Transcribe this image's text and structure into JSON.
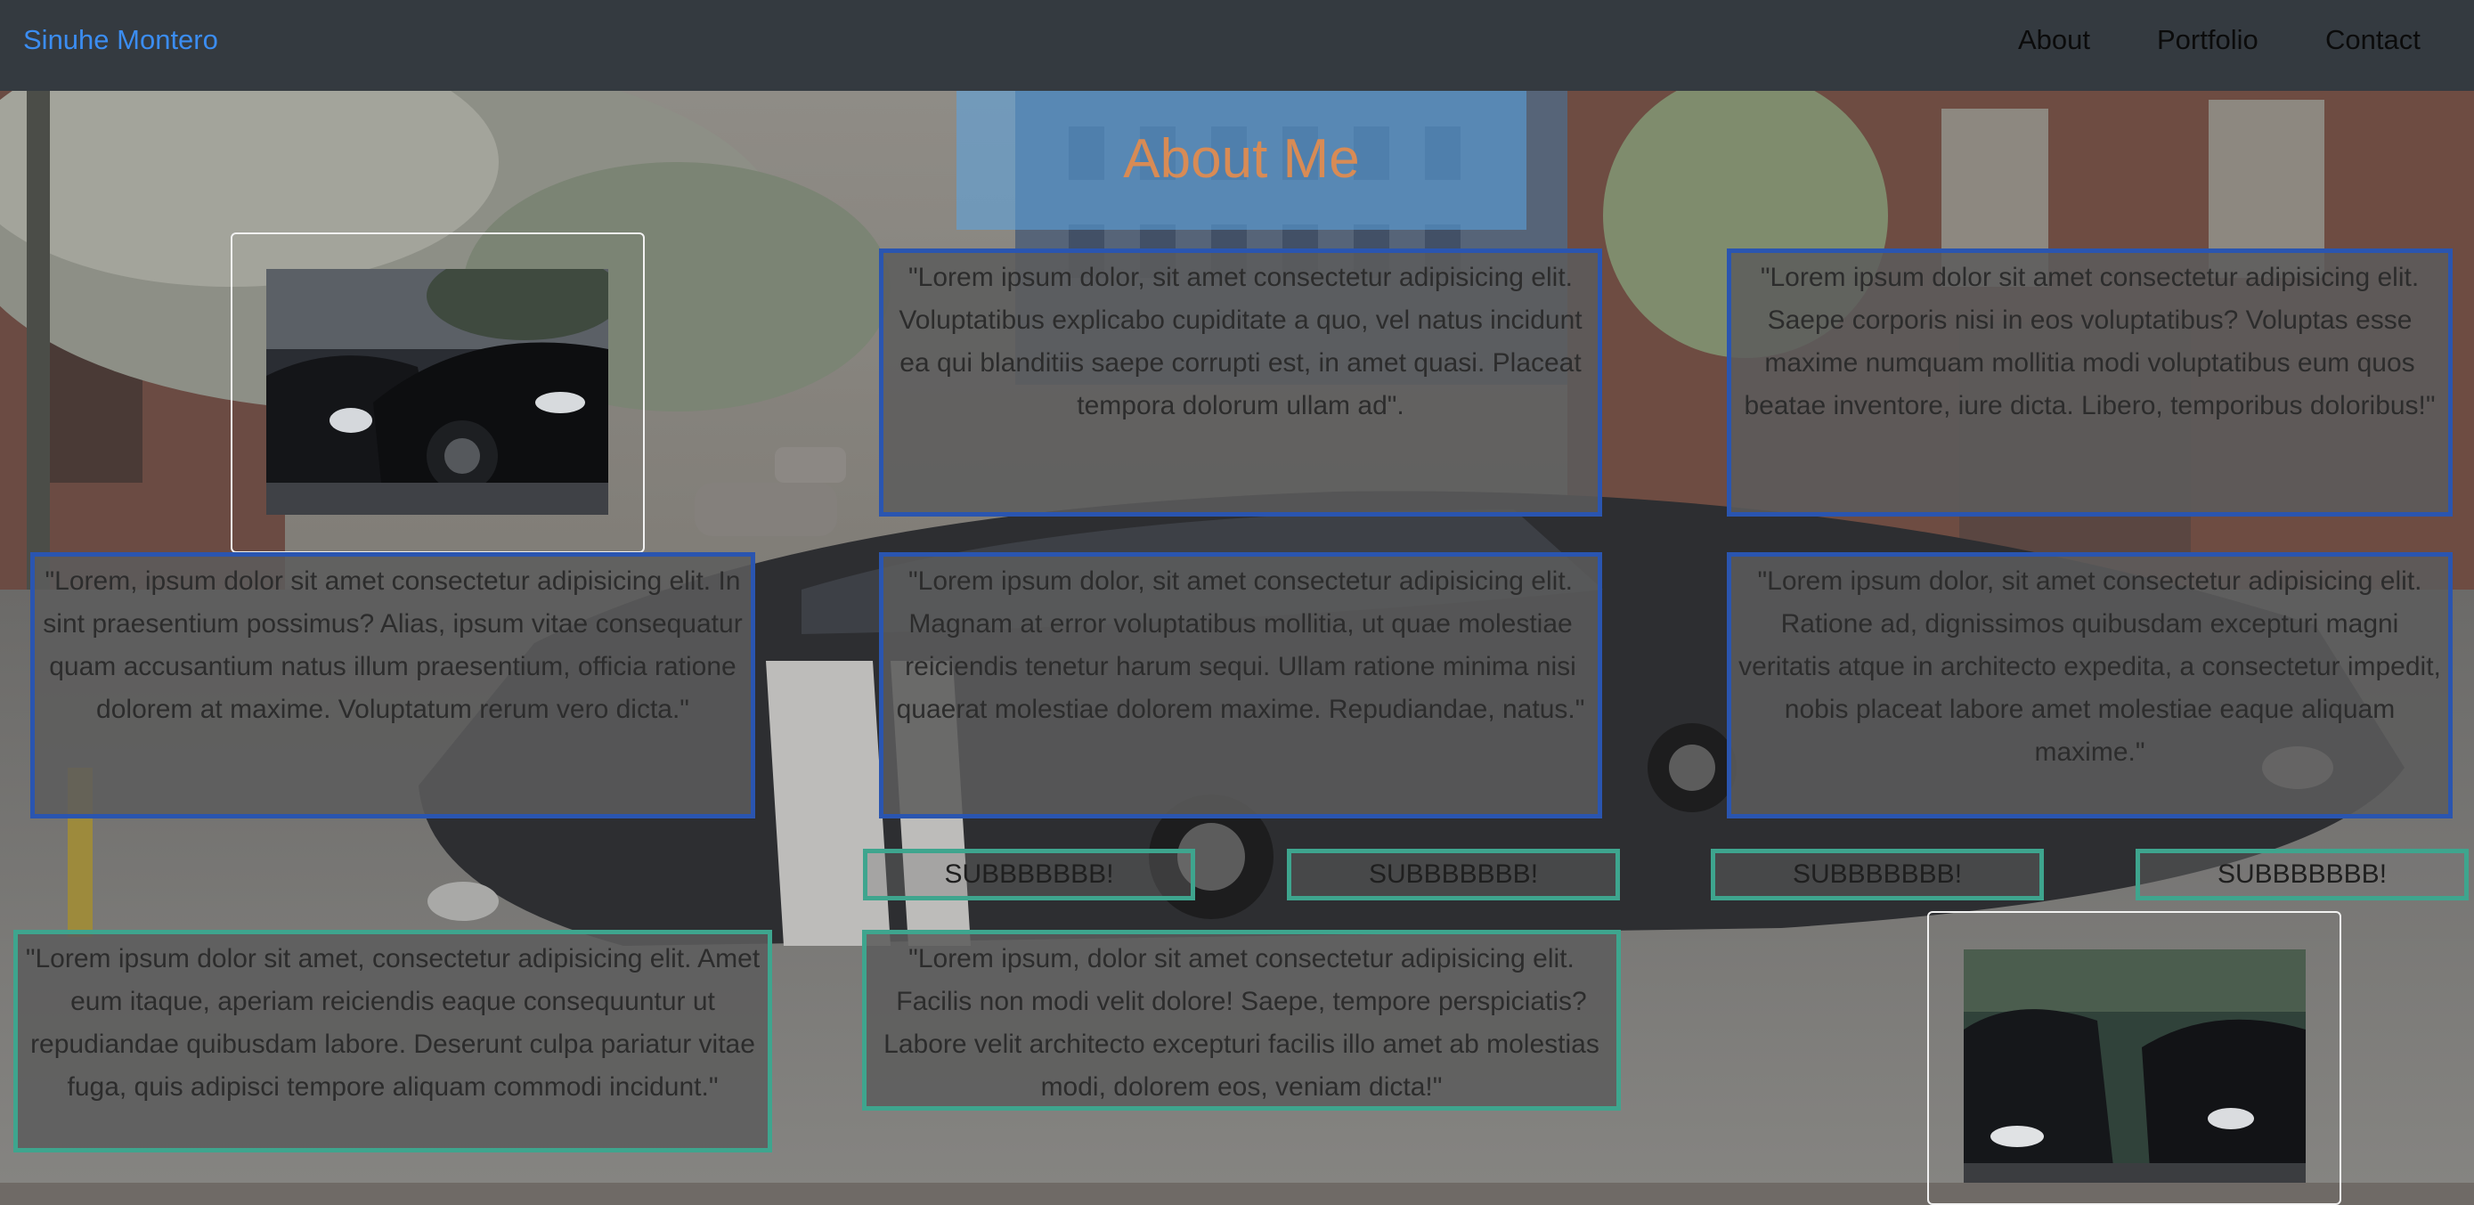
{
  "navbar": {
    "brand": "Sinuhe Montero",
    "links": [
      "About",
      "Portfolio",
      "Contact"
    ]
  },
  "title": "About Me",
  "cards": [
    "\"Lorem ipsum dolor, sit amet consectetur adipisicing elit. Voluptatibus explicabo cupiditate a quo, vel natus incidunt ea qui blanditiis saepe corrupti est, in amet quasi. Placeat tempora dolorum ullam ad\".",
    "\"Lorem ipsum dolor sit amet consectetur adipisicing elit. Saepe corporis nisi in eos voluptatibus? Voluptas esse maxime numquam mollitia modi voluptatibus eum quos beatae inventore, iure dicta. Libero, temporibus doloribus!\"",
    "\"Lorem, ipsum dolor sit amet consectetur adipisicing elit. In sint praesentium possimus? Alias, ipsum vitae consequatur quam accusantium natus illum praesentium, officia ratione dolorem at maxime. Voluptatum rerum vero dicta.\"",
    "\"Lorem ipsum dolor, sit amet consectetur adipisicing elit. Magnam at error voluptatibus mollitia, ut quae molestiae reiciendis tenetur harum sequi. Ullam ratione minima nisi quaerat molestiae dolorem maxime. Repudiandae, natus.\"",
    "\"Lorem ipsum dolor, sit amet consectetur adipisicing elit. Ratione ad, dignissimos quibusdam excepturi magni veritatis atque in architecto expedita, a consectetur impedit, nobis placeat labore amet molestiae eaque aliquam maxime.\"",
    "\"Lorem ipsum dolor sit amet, consectetur adipisicing elit. Amet eum itaque, aperiam reiciendis eaque consequuntur ut repudiandae quibusdam labore. Deserunt culpa pariatur vitae fuga, quis adipisci tempore aliquam commodi incidunt.\"",
    "\"Lorem ipsum, dolor sit amet consectetur adipisicing elit. Facilis non modi velit dolore! Saepe, tempore perspiciatis? Labore velit architecto excepturi facilis illo amet ab molestias modi, dolorem eos, veniam dicta!\""
  ],
  "sub_buttons": [
    "SUBBBBBBB!",
    "SUBBBBBBB!",
    "SUBBBBBBB!",
    "SUBBBBBBB!"
  ],
  "colors": {
    "navbar_bg": "#343a40",
    "brand": "#3b8df2",
    "card_border_blue": "#2a55b0",
    "card_border_teal": "#3ea58e",
    "title": "#d88b55",
    "title_bg": "#5ba5e6"
  },
  "icons": [
    "car-photo-icon",
    "cars-parked-photo-icon"
  ]
}
